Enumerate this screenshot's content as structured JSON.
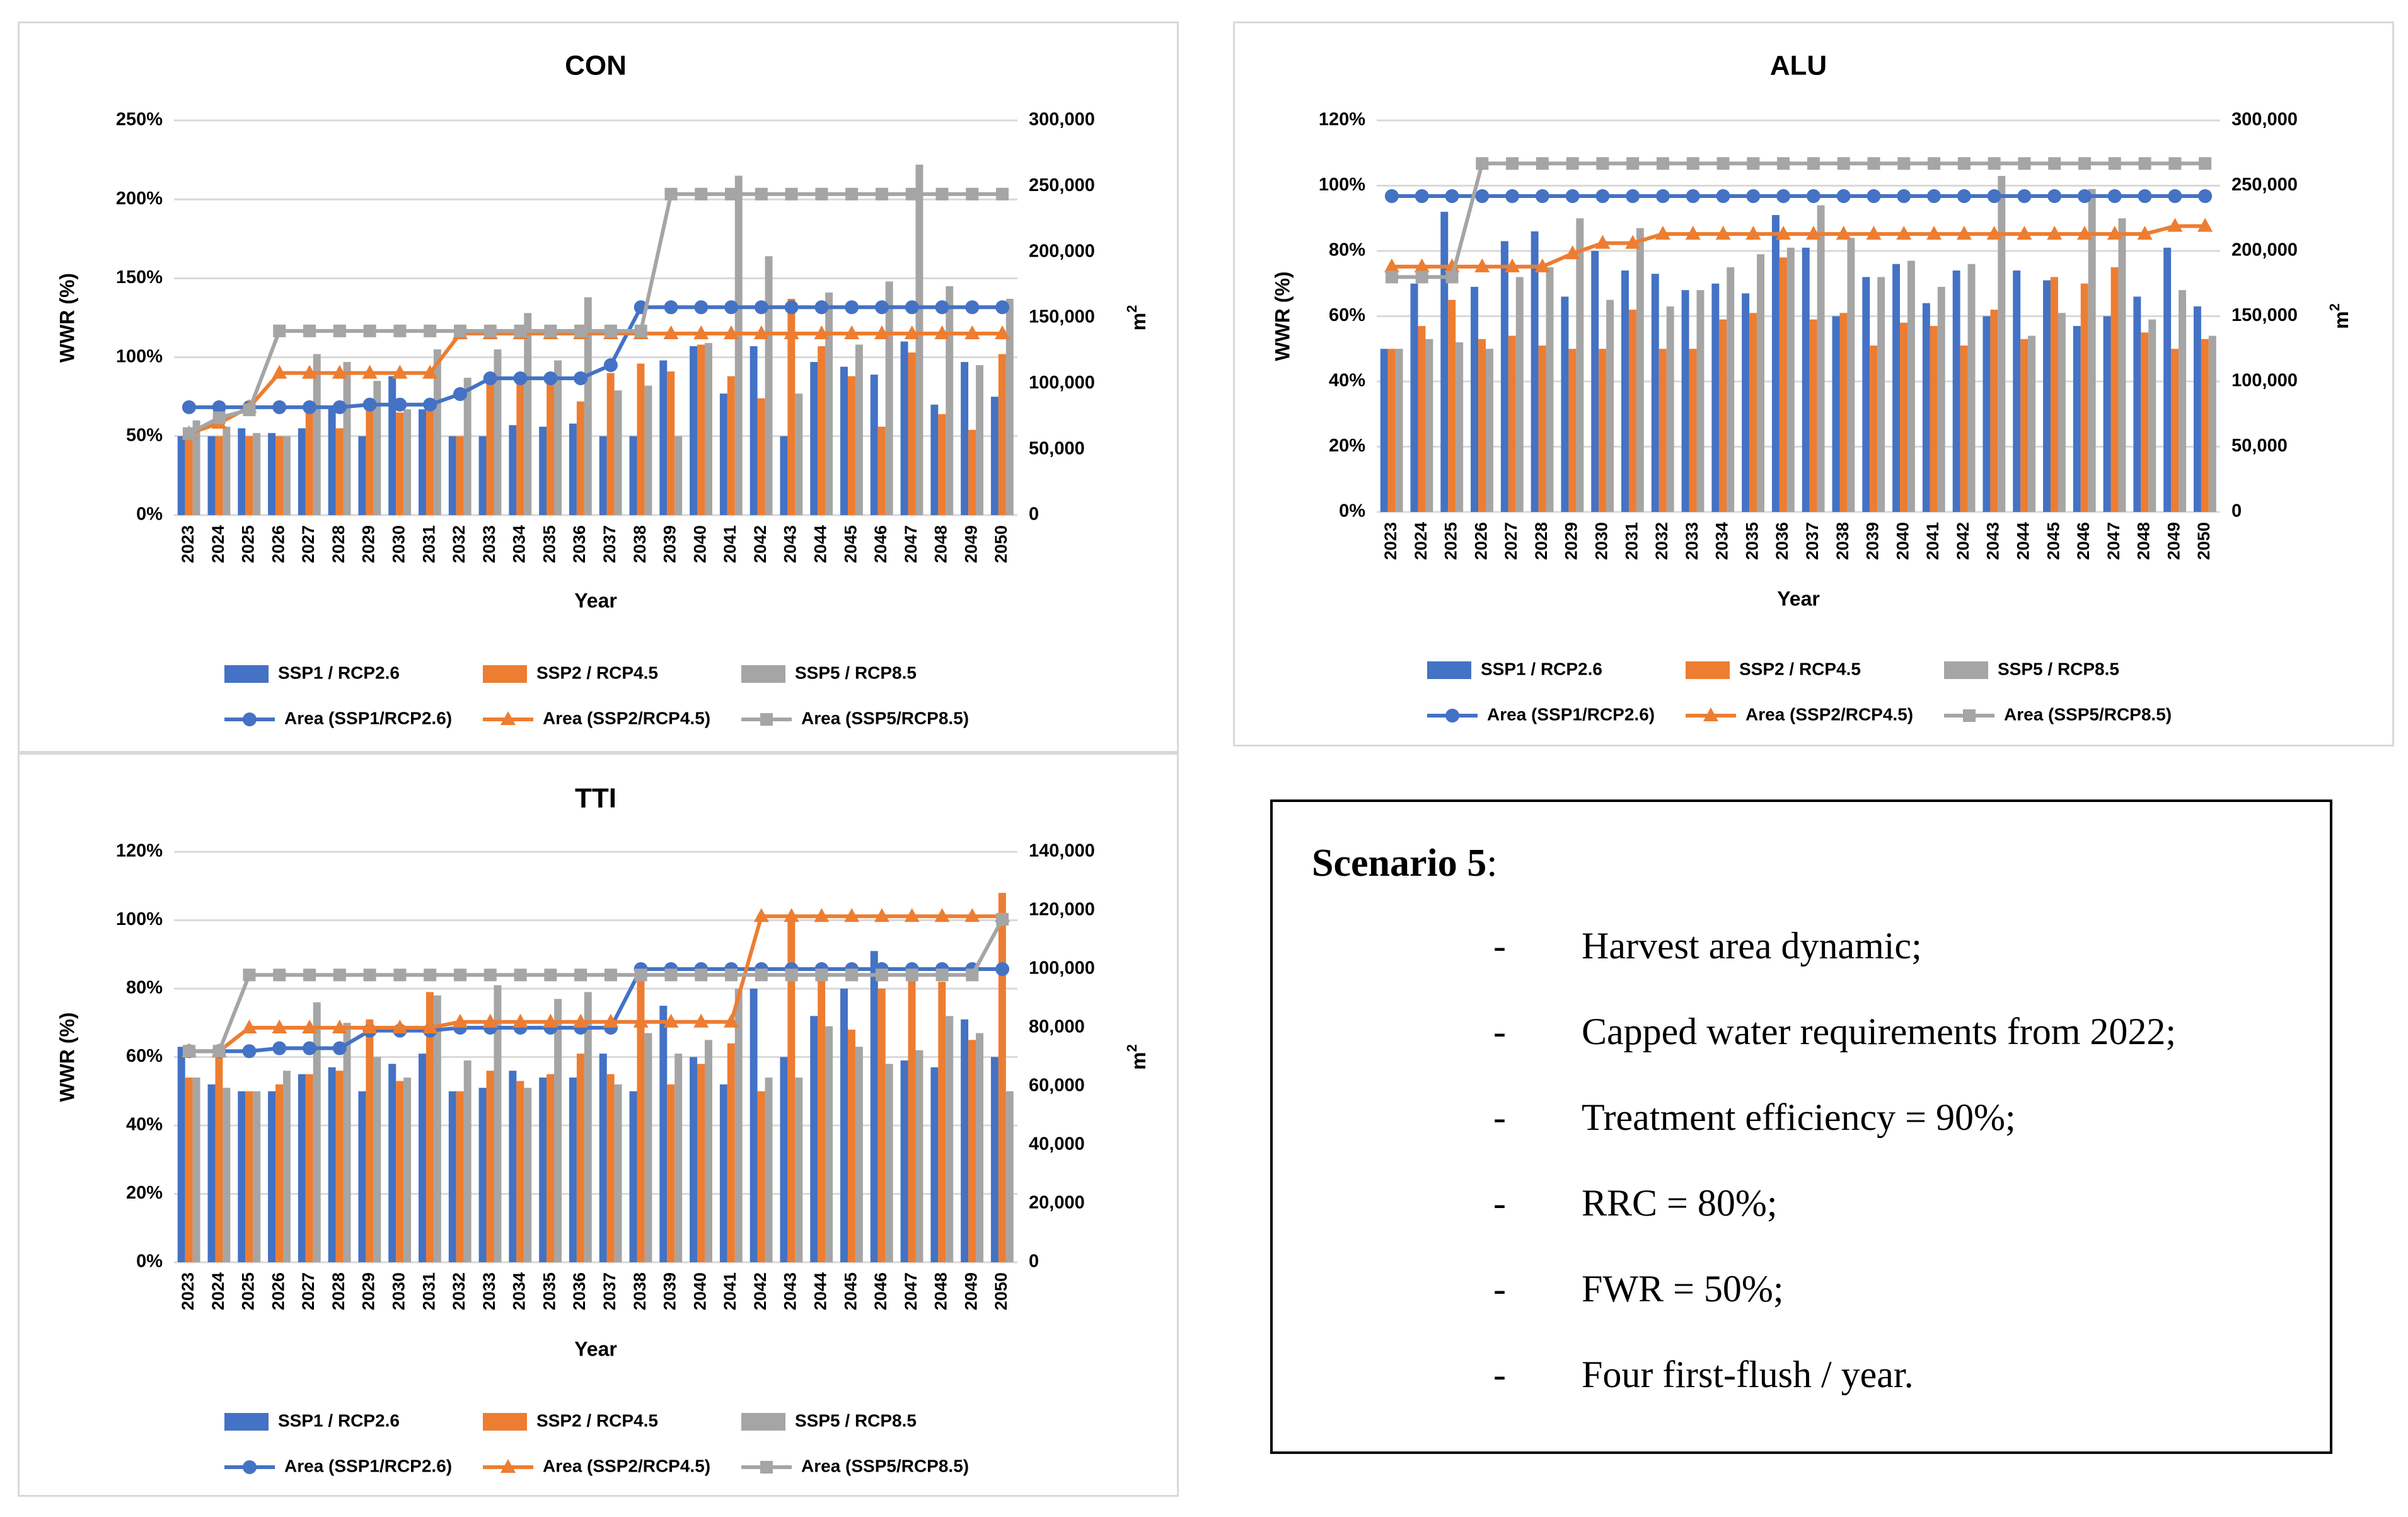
{
  "colors": {
    "ssp1": "#4472c4",
    "ssp2": "#ed7d31",
    "ssp5": "#a5a5a5",
    "grid": "#d9d9d9",
    "text": "#000000"
  },
  "legend": {
    "bar_ssp1": "SSP1 / RCP2.6",
    "bar_ssp2": "SSP2 / RCP4.5",
    "bar_ssp5": "SSP5 / RCP8.5",
    "area_ssp1": "Area (SSP1/RCP2.6)",
    "area_ssp2": "Area (SSP2/RCP4.5)",
    "area_ssp5": "Area (SSP5/RCP8.5)"
  },
  "chart_data": [
    {
      "id": "con",
      "type": "bar",
      "title": "CON",
      "xlabel": "Year",
      "ylabel": "WWR (%)",
      "y2label": "m",
      "y2label_sup": "2",
      "categories": [
        "2023",
        "2024",
        "2025",
        "2026",
        "2027",
        "2028",
        "2029",
        "2030",
        "2031",
        "2032",
        "2033",
        "2034",
        "2035",
        "2036",
        "2037",
        "2038",
        "2039",
        "2040",
        "2041",
        "2042",
        "2043",
        "2044",
        "2045",
        "2046",
        "2047",
        "2048",
        "2049",
        "2050"
      ],
      "ylim": [
        0,
        250
      ],
      "yticks": [
        "0%",
        "50%",
        "100%",
        "150%",
        "200%",
        "250%"
      ],
      "y2lim": [
        0,
        300000
      ],
      "y2ticks": [
        "0",
        "50,000",
        "100,000",
        "150,000",
        "200,000",
        "250,000",
        "300,000"
      ],
      "bar_series": [
        {
          "name": "SSP1 / RCP2.6",
          "values": [
            50,
            50,
            55,
            52,
            55,
            68,
            50,
            88,
            67,
            50,
            50,
            57,
            56,
            58,
            50,
            50,
            98,
            107,
            77,
            107,
            50,
            97,
            94,
            89,
            110,
            70,
            97,
            75
          ]
        },
        {
          "name": "SSP2 / RCP4.5",
          "values": [
            55,
            50,
            50,
            50,
            65,
            55,
            68,
            65,
            66,
            50,
            85,
            84,
            85,
            72,
            90,
            96,
            91,
            108,
            88,
            74,
            137,
            107,
            88,
            56,
            103,
            64,
            54,
            102
          ]
        },
        {
          "name": "SSP5 / RCP8.5",
          "values": [
            60,
            56,
            52,
            50,
            102,
            97,
            85,
            67,
            105,
            87,
            105,
            128,
            98,
            138,
            79,
            82,
            50,
            109,
            215,
            164,
            77,
            141,
            108,
            148,
            222,
            145,
            95,
            137
          ]
        }
      ],
      "line_series": [
        {
          "name": "Area (SSP1/RCP2.6)",
          "values": [
            82000,
            82000,
            82000,
            82000,
            82000,
            82000,
            84000,
            84000,
            84000,
            92000,
            104000,
            104000,
            104000,
            104000,
            114000,
            158000,
            158000,
            158000,
            158000,
            158000,
            158000,
            158000,
            158000,
            158000,
            158000,
            158000,
            158000,
            158000
          ]
        },
        {
          "name": "Area (SSP2/RCP4.5)",
          "values": [
            62000,
            70000,
            82000,
            108000,
            108000,
            108000,
            108000,
            108000,
            108000,
            138000,
            138000,
            138000,
            138000,
            138000,
            138000,
            138000,
            138000,
            138000,
            138000,
            138000,
            138000,
            138000,
            138000,
            138000,
            138000,
            138000,
            138000,
            138000
          ]
        },
        {
          "name": "Area (SSP5/RCP8.5)",
          "values": [
            62000,
            74000,
            80000,
            140000,
            140000,
            140000,
            140000,
            140000,
            140000,
            140000,
            140000,
            140000,
            140000,
            140000,
            140000,
            140000,
            244000,
            244000,
            244000,
            244000,
            244000,
            244000,
            244000,
            244000,
            244000,
            244000,
            244000,
            244000
          ]
        }
      ]
    },
    {
      "id": "alu",
      "type": "bar",
      "title": "ALU",
      "xlabel": "Year",
      "ylabel": "WWR (%)",
      "y2label": "m",
      "y2label_sup": "2",
      "categories": [
        "2023",
        "2024",
        "2025",
        "2026",
        "2027",
        "2028",
        "2029",
        "2030",
        "2031",
        "2032",
        "2033",
        "2034",
        "2035",
        "2036",
        "2037",
        "2038",
        "2039",
        "2040",
        "2041",
        "2042",
        "2043",
        "2044",
        "2045",
        "2046",
        "2047",
        "2048",
        "2049",
        "2050"
      ],
      "ylim": [
        0,
        120
      ],
      "yticks": [
        "0%",
        "20%",
        "40%",
        "60%",
        "80%",
        "100%",
        "120%"
      ],
      "y2lim": [
        0,
        300000
      ],
      "y2ticks": [
        "0",
        "50,000",
        "100,000",
        "150,000",
        "200,000",
        "250,000",
        "300,000"
      ],
      "bar_series": [
        {
          "name": "SSP1 / RCP2.6",
          "values": [
            50,
            70,
            92,
            69,
            83,
            86,
            66,
            80,
            74,
            73,
            68,
            70,
            67,
            91,
            81,
            60,
            72,
            76,
            64,
            74,
            60,
            74,
            71,
            57,
            60,
            66,
            81,
            63
          ]
        },
        {
          "name": "SSP2 / RCP4.5",
          "values": [
            50,
            57,
            65,
            53,
            54,
            51,
            50,
            50,
            62,
            50,
            50,
            59,
            61,
            78,
            59,
            61,
            51,
            58,
            57,
            51,
            62,
            53,
            72,
            70,
            75,
            55,
            50,
            53
          ]
        },
        {
          "name": "SSP5 / RCP8.5",
          "values": [
            50,
            53,
            52,
            50,
            72,
            75,
            90,
            65,
            87,
            63,
            68,
            75,
            79,
            81,
            94,
            84,
            72,
            77,
            69,
            76,
            103,
            54,
            61,
            99,
            90,
            59,
            68,
            54
          ]
        }
      ],
      "line_series": [
        {
          "name": "Area (SSP1/RCP2.6)",
          "values": [
            242000,
            242000,
            242000,
            242000,
            242000,
            242000,
            242000,
            242000,
            242000,
            242000,
            242000,
            242000,
            242000,
            242000,
            242000,
            242000,
            242000,
            242000,
            242000,
            242000,
            242000,
            242000,
            242000,
            242000,
            242000,
            242000,
            242000,
            242000
          ]
        },
        {
          "name": "Area (SSP2/RCP4.5)",
          "values": [
            188000,
            188000,
            188000,
            188000,
            188000,
            188000,
            198000,
            206000,
            206000,
            213000,
            213000,
            213000,
            213000,
            213000,
            213000,
            213000,
            213000,
            213000,
            213000,
            213000,
            213000,
            213000,
            213000,
            213000,
            213000,
            213000,
            219000,
            219000
          ]
        },
        {
          "name": "Area (SSP5/RCP8.5)",
          "values": [
            180000,
            180000,
            180000,
            267000,
            267000,
            267000,
            267000,
            267000,
            267000,
            267000,
            267000,
            267000,
            267000,
            267000,
            267000,
            267000,
            267000,
            267000,
            267000,
            267000,
            267000,
            267000,
            267000,
            267000,
            267000,
            267000,
            267000,
            267000
          ]
        }
      ]
    },
    {
      "id": "tti",
      "type": "bar",
      "title": "TTI",
      "xlabel": "Year",
      "ylabel": "WWR (%)",
      "y2label": "m",
      "y2label_sup": "2",
      "categories": [
        "2023",
        "2024",
        "2025",
        "2026",
        "2027",
        "2028",
        "2029",
        "2030",
        "2031",
        "2032",
        "2033",
        "2034",
        "2035",
        "2036",
        "2037",
        "2038",
        "2039",
        "2040",
        "2041",
        "2042",
        "2043",
        "2044",
        "2045",
        "2046",
        "2047",
        "2048",
        "2049",
        "2050"
      ],
      "ylim": [
        0,
        120
      ],
      "yticks": [
        "0%",
        "20%",
        "40%",
        "60%",
        "80%",
        "100%",
        "120%"
      ],
      "y2lim": [
        0,
        140000
      ],
      "y2ticks": [
        "0",
        "20,000",
        "40,000",
        "60,000",
        "80,000",
        "100,000",
        "120,000",
        "140,000"
      ],
      "bar_series": [
        {
          "name": "SSP1 / RCP2.6",
          "values": [
            63,
            52,
            50,
            50,
            55,
            57,
            50,
            58,
            61,
            50,
            51,
            56,
            54,
            54,
            61,
            50,
            75,
            60,
            52,
            80,
            60,
            72,
            80,
            91,
            59,
            57,
            71,
            60
          ]
        },
        {
          "name": "SSP2 / RCP4.5",
          "values": [
            54,
            60,
            50,
            52,
            55,
            56,
            71,
            53,
            79,
            50,
            56,
            53,
            55,
            61,
            55,
            85,
            52,
            58,
            64,
            50,
            100,
            85,
            68,
            80,
            86,
            82,
            65,
            108
          ]
        },
        {
          "name": "SSP5 / RCP8.5",
          "values": [
            54,
            51,
            50,
            56,
            76,
            70,
            60,
            54,
            78,
            59,
            81,
            51,
            77,
            79,
            52,
            67,
            61,
            65,
            80,
            54,
            54,
            69,
            63,
            58,
            62,
            72,
            67,
            50
          ]
        }
      ],
      "line_series": [
        {
          "name": "Area (SSP1/RCP2.6)",
          "values": [
            72000,
            72000,
            72000,
            73000,
            73000,
            73000,
            79000,
            79000,
            79000,
            80000,
            80000,
            80000,
            80000,
            80000,
            80000,
            100000,
            100000,
            100000,
            100000,
            100000,
            100000,
            100000,
            100000,
            100000,
            100000,
            100000,
            100000,
            100000
          ]
        },
        {
          "name": "Area (SSP2/RCP4.5)",
          "values": [
            72000,
            72000,
            80000,
            80000,
            80000,
            80000,
            80000,
            80000,
            80000,
            82000,
            82000,
            82000,
            82000,
            82000,
            82000,
            82000,
            82000,
            82000,
            82000,
            118000,
            118000,
            118000,
            118000,
            118000,
            118000,
            118000,
            118000,
            118000
          ]
        },
        {
          "name": "Area (SSP5/RCP8.5)",
          "values": [
            72000,
            72000,
            98000,
            98000,
            98000,
            98000,
            98000,
            98000,
            98000,
            98000,
            98000,
            98000,
            98000,
            98000,
            98000,
            98000,
            98000,
            98000,
            98000,
            98000,
            98000,
            98000,
            98000,
            98000,
            98000,
            98000,
            98000,
            117000
          ]
        }
      ]
    }
  ],
  "scenario": {
    "title": "Scenario 5",
    "colon": ":",
    "dash": "-",
    "items": [
      "Harvest area dynamic;",
      "Capped water requirements from 2022;",
      "Treatment efficiency = 90%;",
      "RRC = 80%;",
      "FWR = 50%;",
      "Four first-flush / year."
    ]
  }
}
